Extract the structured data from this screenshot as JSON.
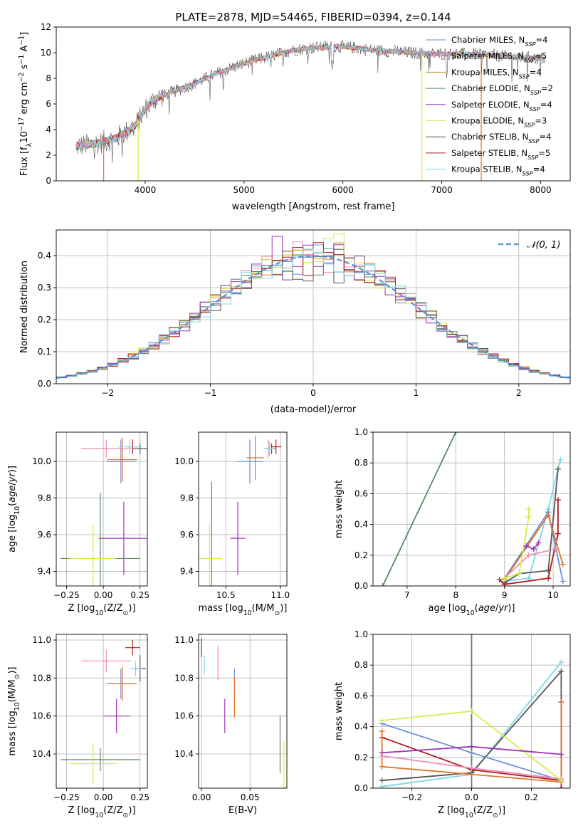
{
  "title": "PLATE=2878, MJD=54465, FIBERID=0394, z=0.144",
  "legend_entries": [
    {
      "name": "Chabrier MILES, N",
      "sub": "SSP",
      "suffix": "=4",
      "color": "#6a8fd8"
    },
    {
      "name": "Salpeter MILES, N",
      "sub": "SSP",
      "suffix": "=5",
      "color": "#f08cb6"
    },
    {
      "name": "Kroupa MILES, N",
      "sub": "SSP",
      "suffix": "=4",
      "color": "#c08a1c"
    },
    {
      "name": "Chabrier ELODIE, N",
      "sub": "SSP",
      "suffix": "=2",
      "color": "#5a8a5e"
    },
    {
      "name": "Salpeter ELODIE, N",
      "sub": "SSP",
      "suffix": "=4",
      "color": "#9b34b8"
    },
    {
      "name": "Kroupa ELODIE, N",
      "sub": "SSP",
      "suffix": "=3",
      "color": "#d6ec4a"
    },
    {
      "name": "Chabrier STELIB, N",
      "sub": "SSP",
      "suffix": "=4",
      "color": "#555555"
    },
    {
      "name": "Salpeter STELIB, N",
      "sub": "SSP",
      "suffix": "=5",
      "color": "#b01a1a"
    },
    {
      "name": "Kroupa STELIB, N",
      "sub": "SSP",
      "suffix": "=4",
      "color": "#7dd6e6"
    }
  ],
  "normal_label": "𝒩(0, 1)",
  "chart_data": [
    {
      "id": "spectrum",
      "type": "line",
      "xlabel": "wavelength [Angstrom, rest frame]",
      "ylabel": "Flux [f",
      "ylabel_sub": "λ",
      "ylabel_rest": "10",
      "ylabel_exp": "−17",
      "ylabel_tail": " erg cm",
      "ylabel_exp2": "−2",
      "ylabel_tail2": " s",
      "ylabel_exp3": "−1",
      "ylabel_tail3": " A",
      "ylabel_exp4": "−1",
      "ylabel_end": "]",
      "xlim": [
        3100,
        8300
      ],
      "ylim": [
        0,
        12
      ],
      "xticks": [
        4000,
        5000,
        6000,
        7000,
        8000
      ],
      "yticks": [
        0,
        2,
        4,
        6,
        8,
        10,
        12
      ],
      "continuum": [
        [
          3300,
          2.7
        ],
        [
          3500,
          2.9
        ],
        [
          3700,
          3.3
        ],
        [
          3900,
          4.3
        ],
        [
          4000,
          5.6
        ],
        [
          4100,
          6.4
        ],
        [
          4300,
          7.0
        ],
        [
          4500,
          7.6
        ],
        [
          4700,
          8.3
        ],
        [
          4900,
          8.9
        ],
        [
          5100,
          9.4
        ],
        [
          5300,
          9.8
        ],
        [
          5500,
          10.2
        ],
        [
          5700,
          10.4
        ],
        [
          5900,
          10.5
        ],
        [
          6100,
          10.4
        ],
        [
          6300,
          10.2
        ],
        [
          6500,
          10.1
        ],
        [
          6700,
          10.0
        ],
        [
          6900,
          9.9
        ],
        [
          7100,
          9.9
        ],
        [
          7300,
          9.9
        ],
        [
          7500,
          9.8
        ],
        [
          7700,
          9.7
        ],
        [
          7900,
          9.6
        ],
        [
          8050,
          9.5
        ]
      ],
      "drops": [
        {
          "x": 3580,
          "series": 2
        },
        {
          "x": 3930,
          "series": 5
        },
        {
          "x": 6800,
          "series": 5
        },
        {
          "x": 7400,
          "series": 2
        }
      ]
    },
    {
      "id": "residuals",
      "type": "step",
      "xlabel": "(data-model)/error",
      "ylabel": "Normed distribution",
      "xlim": [
        -2.5,
        2.5
      ],
      "ylim": [
        0,
        0.48
      ],
      "xticks": [
        -2,
        -1,
        0,
        1,
        2
      ],
      "yticks": [
        0,
        0.1,
        0.2,
        0.3,
        0.4
      ],
      "bin_width": 0.1,
      "mu": 0,
      "sigma": 1,
      "series_colors": [
        "#6a8fd8",
        "#f08cb6",
        "#e0742a",
        "#5a8a5e",
        "#9b34b8",
        "#d6ec4a",
        "#555555",
        "#b01a1a",
        "#7dd6e6"
      ],
      "peaks": [
        0.36,
        0.41,
        0.35,
        0.42,
        0.46,
        0.38,
        0.43,
        0.41,
        0.35
      ]
    },
    {
      "id": "age-vs-Z",
      "type": "errorbar",
      "xlabel": "Z [log",
      "xlabel_sub": "10",
      "xlabel_rest": "(Z/Z",
      "xlabel_sub2": "⊙",
      "xlabel_end": ")]",
      "ylabel": "age  [log",
      "ylabel_sub": "10",
      "ylabel_rest": "(age/yr)]",
      "xlim": [
        -0.32,
        0.3
      ],
      "ylim": [
        9.32,
        10.16
      ],
      "xticks": [
        -0.25,
        0.0,
        0.25
      ],
      "yticks": [
        9.4,
        9.6,
        9.8,
        10.0
      ],
      "points": [
        {
          "x": 0.2,
          "y": 10.08,
          "xerr": 0.04,
          "yerr": 0.04,
          "color": "#b01a1a"
        },
        {
          "x": 0.25,
          "y": 10.07,
          "xerr": 0.05,
          "yerr": 0.03,
          "color": "#555555"
        },
        {
          "x": 0.02,
          "y": 10.07,
          "xerr": 0.17,
          "yerr": 0.05,
          "color": "#f08cb6"
        },
        {
          "x": 0.12,
          "y": 10.0,
          "xerr": 0.1,
          "yerr": 0.12,
          "color": "#6a8fd8"
        },
        {
          "x": 0.13,
          "y": 10.01,
          "xerr": 0.1,
          "yerr": 0.12,
          "color": "#e0742a"
        },
        {
          "x": 0.18,
          "y": 10.08,
          "xerr": 0.08,
          "yerr": 0.04,
          "color": "#7dd6e6"
        },
        {
          "x": 0.14,
          "y": 9.58,
          "xerr": 0.17,
          "yerr": 0.2,
          "color": "#9b34b8"
        },
        {
          "x": -0.02,
          "y": 9.47,
          "xerr": 0.27,
          "yerr": 0.36,
          "color": "#5a8a5e"
        },
        {
          "x": -0.07,
          "y": 9.47,
          "xerr": 0.16,
          "yerr": 0.18,
          "color": "#d6ec4a"
        }
      ]
    },
    {
      "id": "age-vs-mass",
      "type": "errorbar",
      "xlabel": "mass [log",
      "xlabel_sub": "10",
      "xlabel_rest": "(M/M",
      "xlabel_sub2": "⊙",
      "xlabel_end": ")]",
      "ylabel": "",
      "xlim": [
        10.25,
        11.06
      ],
      "ylim": [
        9.32,
        10.16
      ],
      "xticks": [
        10.5,
        11.0
      ],
      "yticks": [
        9.4,
        9.6,
        9.8,
        10.0
      ],
      "points": [
        {
          "x": 10.96,
          "y": 10.08,
          "xerr": 0.05,
          "yerr": 0.04,
          "color": "#b01a1a"
        },
        {
          "x": 10.92,
          "y": 10.07,
          "xerr": 0.04,
          "yerr": 0.03,
          "color": "#555555"
        },
        {
          "x": 10.89,
          "y": 10.07,
          "xerr": 0.04,
          "yerr": 0.05,
          "color": "#f08cb6"
        },
        {
          "x": 10.77,
          "y": 10.02,
          "xerr": 0.08,
          "yerr": 0.12,
          "color": "#e0742a"
        },
        {
          "x": 10.72,
          "y": 10.0,
          "xerr": 0.12,
          "yerr": 0.12,
          "color": "#6a8fd8"
        },
        {
          "x": 10.9,
          "y": 10.07,
          "xerr": 0.05,
          "yerr": 0.04,
          "color": "#7dd6e6"
        },
        {
          "x": 10.61,
          "y": 9.58,
          "xerr": 0.07,
          "yerr": 0.2,
          "color": "#9b34b8"
        },
        {
          "x": 10.37,
          "y": 9.47,
          "xerr": 0.07,
          "yerr": 0.42,
          "color": "#5a8a5e"
        },
        {
          "x": 10.35,
          "y": 9.47,
          "xerr": 0.11,
          "yerr": 0.19,
          "color": "#d6ec4a"
        }
      ]
    },
    {
      "id": "massweight-vs-age",
      "type": "line",
      "xlabel": "age  [log",
      "xlabel_sub": "10",
      "xlabel_rest": "(age/yr)]",
      "ylabel": "mass weight",
      "xlim": [
        6.3,
        10.35
      ],
      "ylim": [
        0,
        1.0
      ],
      "xticks": [
        7,
        8,
        9,
        10
      ],
      "yticks": [
        0.0,
        0.2,
        0.4,
        0.6,
        0.8,
        1.0
      ],
      "series": [
        {
          "color": "#5a8a5e",
          "points": [
            [
              6.5,
              0.0
            ],
            [
              8.0,
              1.0
            ]
          ]
        },
        {
          "color": "#7dd6e6",
          "points": [
            [
              9.0,
              0.03
            ],
            [
              9.5,
              0.05
            ],
            [
              9.9,
              0.5
            ],
            [
              10.15,
              0.82
            ]
          ]
        },
        {
          "color": "#555555",
          "points": [
            [
              9.0,
              0.02
            ],
            [
              9.3,
              0.08
            ],
            [
              9.9,
              0.1
            ],
            [
              10.1,
              0.76
            ]
          ]
        },
        {
          "color": "#b01a1a",
          "points": [
            [
              8.9,
              0.04
            ],
            [
              9.0,
              0.01
            ],
            [
              9.9,
              0.05
            ],
            [
              10.1,
              0.34
            ],
            [
              10.1,
              0.56
            ]
          ]
        },
        {
          "color": "#6a8fd8",
          "points": [
            [
              9.0,
              0.05
            ],
            [
              9.9,
              0.48
            ],
            [
              10.2,
              0.03
            ]
          ]
        },
        {
          "color": "#e0742a",
          "points": [
            [
              9.0,
              0.04
            ],
            [
              9.9,
              0.46
            ],
            [
              10.2,
              0.14
            ]
          ]
        },
        {
          "color": "#f08cb6",
          "points": [
            [
              9.0,
              0.05
            ],
            [
              9.5,
              0.2
            ],
            [
              10.05,
              0.24
            ]
          ]
        },
        {
          "color": "#d6ec4a",
          "points": [
            [
              9.0,
              0.05
            ],
            [
              9.3,
              0.08
            ],
            [
              9.5,
              0.45
            ],
            [
              9.5,
              0.5
            ]
          ]
        },
        {
          "color": "#9b34b8",
          "points": [
            [
              9.45,
              0.26
            ],
            [
              9.6,
              0.24
            ],
            [
              9.7,
              0.28
            ]
          ]
        }
      ]
    },
    {
      "id": "mass-vs-Z",
      "type": "errorbar",
      "xlabel": "Z [log",
      "xlabel_sub": "10",
      "xlabel_rest": "(Z/Z",
      "xlabel_sub2": "⊙",
      "xlabel_end": ")]",
      "ylabel": "mass [log",
      "ylabel_sub": "10",
      "ylabel_rest": "(M/M",
      "ylabel_sub2": "⊙",
      "ylabel_end": ")]",
      "xlim": [
        -0.32,
        0.3
      ],
      "ylim": [
        10.22,
        11.03
      ],
      "xticks": [
        -0.25,
        0.0,
        0.25
      ],
      "yticks": [
        10.4,
        10.6,
        10.8,
        11.0
      ],
      "points": [
        {
          "x": 0.2,
          "y": 10.96,
          "xerr": 0.05,
          "yerr": 0.04,
          "color": "#b01a1a"
        },
        {
          "x": 0.25,
          "y": 10.85,
          "xerr": 0.04,
          "yerr": 0.07,
          "color": "#555555"
        },
        {
          "x": 0.02,
          "y": 10.89,
          "xerr": 0.17,
          "yerr": 0.06,
          "color": "#f08cb6"
        },
        {
          "x": 0.12,
          "y": 10.77,
          "xerr": 0.1,
          "yerr": 0.08,
          "color": "#6a8fd8"
        },
        {
          "x": 0.13,
          "y": 10.77,
          "xerr": 0.1,
          "yerr": 0.09,
          "color": "#e0742a"
        },
        {
          "x": 0.22,
          "y": 10.85,
          "xerr": 0.04,
          "yerr": 0.04,
          "color": "#7dd6e6"
        },
        {
          "x": 0.09,
          "y": 10.6,
          "xerr": 0.09,
          "yerr": 0.09,
          "color": "#9b34b8"
        },
        {
          "x": -0.02,
          "y": 10.37,
          "xerr": 0.27,
          "yerr": 0.06,
          "color": "#5a8a5e"
        },
        {
          "x": -0.07,
          "y": 10.35,
          "xerr": 0.16,
          "yerr": 0.11,
          "color": "#d6ec4a"
        }
      ]
    },
    {
      "id": "mass-vs-ebv",
      "type": "errorbar",
      "xlabel": "E(B-V)",
      "ylabel": "",
      "xlim": [
        -0.003,
        0.088
      ],
      "ylim": [
        10.22,
        11.03
      ],
      "xticks": [
        0.0,
        0.05
      ],
      "yticks": [
        10.4,
        10.6,
        10.8,
        11.0
      ],
      "points": [
        {
          "x": 0.0,
          "y": 10.96,
          "xerr": 0,
          "yerr": 0.05,
          "color": "#b01a1a"
        },
        {
          "x": 0.003,
          "y": 10.87,
          "xerr": 0,
          "yerr": 0.05,
          "color": "#7dd6e6"
        },
        {
          "x": 0.017,
          "y": 10.88,
          "xerr": 0,
          "yerr": 0.09,
          "color": "#f08cb6"
        },
        {
          "x": 0.034,
          "y": 10.77,
          "xerr": 0,
          "yerr": 0.08,
          "color": "#6a8fd8"
        },
        {
          "x": 0.034,
          "y": 10.7,
          "xerr": 0,
          "yerr": 0.11,
          "color": "#e0742a"
        },
        {
          "x": 0.024,
          "y": 10.6,
          "xerr": 0,
          "yerr": 0.09,
          "color": "#9b34b8"
        },
        {
          "x": 0.081,
          "y": 10.45,
          "xerr": 0,
          "yerr": 0.15,
          "color": "#5a8a5e"
        },
        {
          "x": 0.085,
          "y": 10.33,
          "xerr": 0,
          "yerr": 0.14,
          "color": "#d6ec4a"
        }
      ]
    },
    {
      "id": "massweight-vs-Z",
      "type": "line",
      "xlabel": "Z [log",
      "xlabel_sub": "10",
      "xlabel_rest": "(Z/Z",
      "xlabel_sub2": "⊙",
      "xlabel_end": ")]",
      "ylabel": "mass weight",
      "xlim": [
        -0.33,
        0.33
      ],
      "ylim": [
        0,
        1.0
      ],
      "xticks": [
        -0.2,
        0.0,
        0.2
      ],
      "yticks": [
        0.0,
        0.2,
        0.4,
        0.6,
        0.8,
        1.0
      ],
      "series": [
        {
          "color": "#5a8a5e",
          "points": [
            [
              0.0,
              0.0
            ],
            [
              0.0,
              1.0
            ]
          ]
        },
        {
          "color": "#7dd6e6",
          "points": [
            [
              -0.3,
              0.01
            ],
            [
              0.0,
              0.09
            ],
            [
              0.3,
              0.82
            ]
          ]
        },
        {
          "color": "#555555",
          "points": [
            [
              -0.3,
              0.05
            ],
            [
              0.0,
              0.1
            ],
            [
              0.3,
              0.76
            ],
            [
              0.3,
              0.0
            ]
          ]
        },
        {
          "color": "#b01a1a",
          "points": [
            [
              -0.3,
              0.33
            ],
            [
              0.0,
              0.12
            ],
            [
              0.3,
              0.05
            ],
            [
              0.3,
              0.56
            ],
            [
              0.3,
              0.0
            ]
          ]
        },
        {
          "color": "#6a8fd8",
          "points": [
            [
              -0.3,
              0.42
            ],
            [
              0.0,
              0.23
            ],
            [
              0.3,
              0.05
            ]
          ]
        },
        {
          "color": "#e0742a",
          "points": [
            [
              -0.3,
              0.37
            ],
            [
              -0.3,
              0.14
            ],
            [
              0.0,
              0.09
            ],
            [
              0.3,
              0.04
            ],
            [
              0.3,
              0.56
            ]
          ]
        },
        {
          "color": "#f08cb6",
          "points": [
            [
              -0.3,
              0.21
            ],
            [
              0.0,
              0.13
            ],
            [
              0.3,
              0.06
            ]
          ]
        },
        {
          "color": "#d6ec4a",
          "points": [
            [
              -0.3,
              0.44
            ],
            [
              0.0,
              0.5
            ],
            [
              0.3,
              0.05
            ]
          ]
        },
        {
          "color": "#9b34b8",
          "points": [
            [
              -0.3,
              0.23
            ],
            [
              0.0,
              0.27
            ],
            [
              0.3,
              0.22
            ]
          ]
        }
      ]
    }
  ]
}
